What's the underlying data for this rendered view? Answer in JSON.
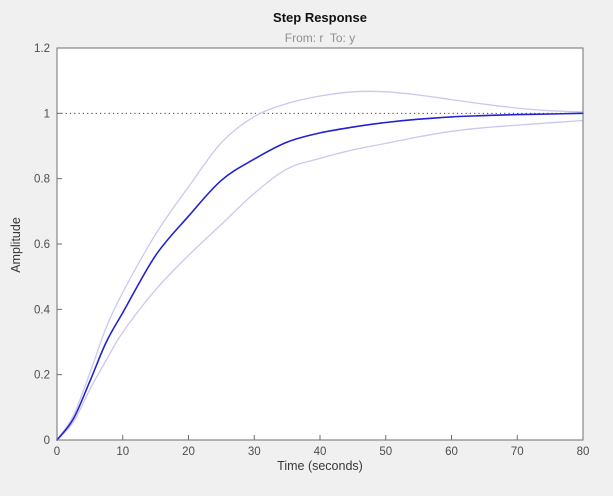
{
  "figure": {
    "title": "Step Response",
    "subtitle": "From: r  To: y",
    "xlabel": "Time (seconds)",
    "ylabel": "Amplitude"
  },
  "colors": {
    "figure_background": "#f0f0f0",
    "plot_background": "#ffffff",
    "axis_box": "#6f6f6f",
    "tick_label": "#4d4d4d",
    "title": "#111111",
    "subtitle": "#8f8f8f",
    "response_line": "#2222cf",
    "confidence_line": "#c9c9ef",
    "reference_dotted": "#3a3a3a"
  },
  "chart_data": {
    "type": "line",
    "title": "Step Response",
    "subtitle": "From: r  To: y",
    "xlabel": "Time (seconds)",
    "ylabel": "Amplitude",
    "xlim": [
      0,
      80
    ],
    "ylim": [
      0,
      1.2
    ],
    "xticks": [
      0,
      10,
      20,
      30,
      40,
      50,
      60,
      70,
      80
    ],
    "xtick_labels": [
      "0",
      "10",
      "20",
      "30",
      "40",
      "50",
      "60",
      "70",
      "80"
    ],
    "yticks": [
      0,
      0.2,
      0.4,
      0.6,
      0.8,
      1,
      1.2
    ],
    "ytick_labels": [
      "0",
      "0.2",
      "0.4",
      "0.6",
      "0.8",
      "1",
      "1.2"
    ],
    "grid": false,
    "legend": "none",
    "reference_line": {
      "y": 1,
      "style": "dotted"
    },
    "x": [
      0,
      2.5,
      5,
      7.5,
      10,
      15,
      20,
      25,
      30,
      35,
      40,
      45,
      50,
      55,
      60,
      65,
      70,
      75,
      80
    ],
    "series": [
      {
        "name": "confidence-upper",
        "role": "confidence-bound",
        "color": "#c9c9ef",
        "width": 1.3,
        "values": [
          0,
          0.075,
          0.205,
          0.345,
          0.452,
          0.63,
          0.775,
          0.91,
          0.99,
          1.03,
          1.053,
          1.066,
          1.066,
          1.056,
          1.042,
          1.028,
          1.016,
          1.008,
          1.004
        ]
      },
      {
        "name": "confidence-lower",
        "role": "confidence-bound",
        "color": "#c9c9ef",
        "width": 1.3,
        "values": [
          0,
          0.055,
          0.155,
          0.245,
          0.33,
          0.46,
          0.565,
          0.66,
          0.755,
          0.83,
          0.862,
          0.888,
          0.908,
          0.928,
          0.945,
          0.956,
          0.964,
          0.971,
          0.978
        ]
      },
      {
        "name": "response",
        "role": "step-response",
        "color": "#2222cf",
        "width": 1.6,
        "values": [
          0,
          0.065,
          0.18,
          0.3,
          0.39,
          0.565,
          0.685,
          0.795,
          0.86,
          0.912,
          0.94,
          0.958,
          0.972,
          0.982,
          0.989,
          0.993,
          0.996,
          0.998,
          1.0
        ]
      }
    ]
  }
}
